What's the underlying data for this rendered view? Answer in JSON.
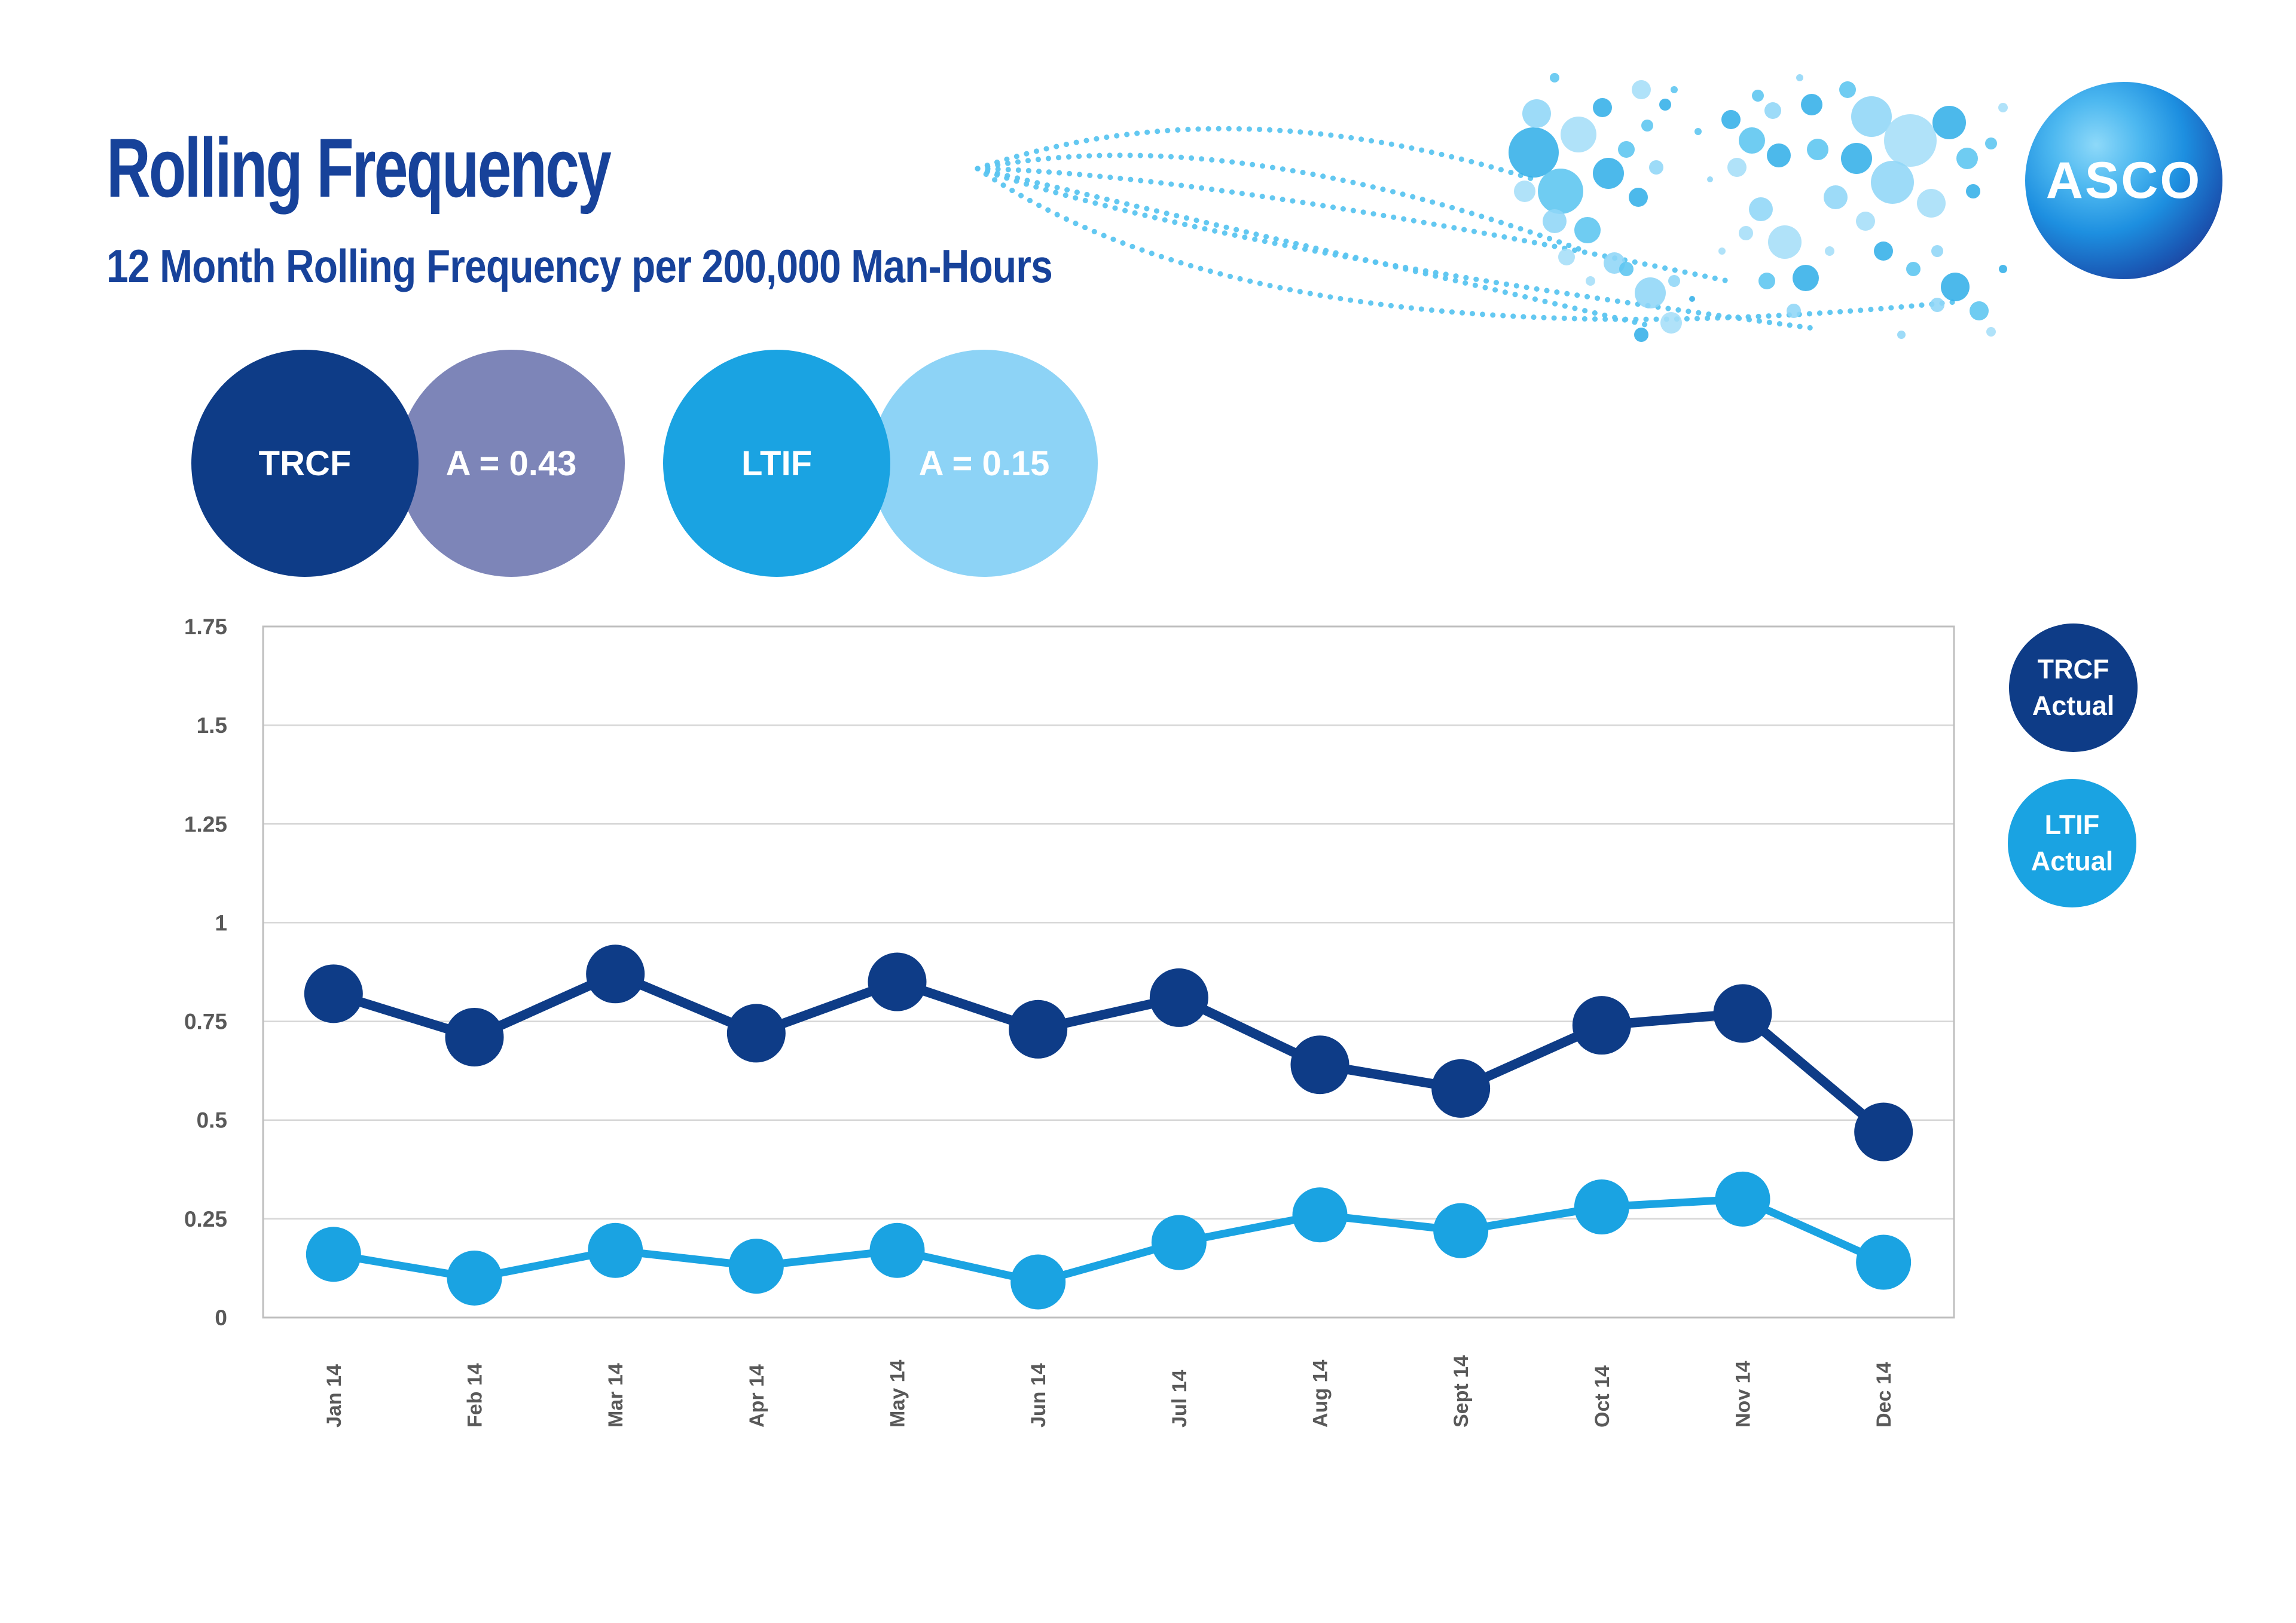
{
  "header": {
    "title": "Rolling Frequency",
    "subtitle": "12 Month Rolling Frequency per 200,000 Man-Hours"
  },
  "logo": {
    "text": "ASCO"
  },
  "targets": {
    "trcf_label": "TRCF",
    "trcf_target": "A = 0.43",
    "ltif_label": "LTIF",
    "ltif_target": "A = 0.15"
  },
  "colors": {
    "navy": "#0E3C87",
    "bright_blue": "#1AA3E2",
    "muted_purple": "#7D85B8",
    "pale_blue": "#8DD3F6",
    "title_blue": "#17429A",
    "axis_gray": "#595959",
    "grid_gray": "#D6D6D6",
    "border_gray": "#BFBFBF",
    "dot_line_blue": "#5BC5F0"
  },
  "chart_data": {
    "type": "line",
    "title": "12 Month Rolling Frequency per 200,000 Man-Hours",
    "xlabel": "",
    "ylabel": "",
    "categories": [
      "Jan 14",
      "Feb 14",
      "Mar 14",
      "Apr 14",
      "May 14",
      "Jun 14",
      "Jul 14",
      "Aug 14",
      "Sept 14",
      "Oct 14",
      "Nov 14",
      "Dec 14"
    ],
    "series": [
      {
        "name": "TRCF Actual",
        "color_key": "navy",
        "values": [
          0.82,
          0.71,
          0.87,
          0.72,
          0.85,
          0.73,
          0.81,
          0.64,
          0.58,
          0.74,
          0.77,
          0.47
        ]
      },
      {
        "name": "LTIF Actual",
        "color_key": "bright_blue",
        "values": [
          0.16,
          0.1,
          0.17,
          0.13,
          0.17,
          0.09,
          0.19,
          0.26,
          0.22,
          0.28,
          0.3,
          0.14
        ]
      }
    ],
    "annual_target_labels": {
      "trcf": "A = 0.43",
      "ltif": "A = 0.15"
    },
    "ylim": [
      0,
      1.75
    ],
    "y_ticks": [
      "0",
      "0.25",
      "0.5",
      "0.75",
      "1",
      "1.25",
      "1.5",
      "1.75"
    ],
    "grid": true,
    "legend_position": "right"
  }
}
